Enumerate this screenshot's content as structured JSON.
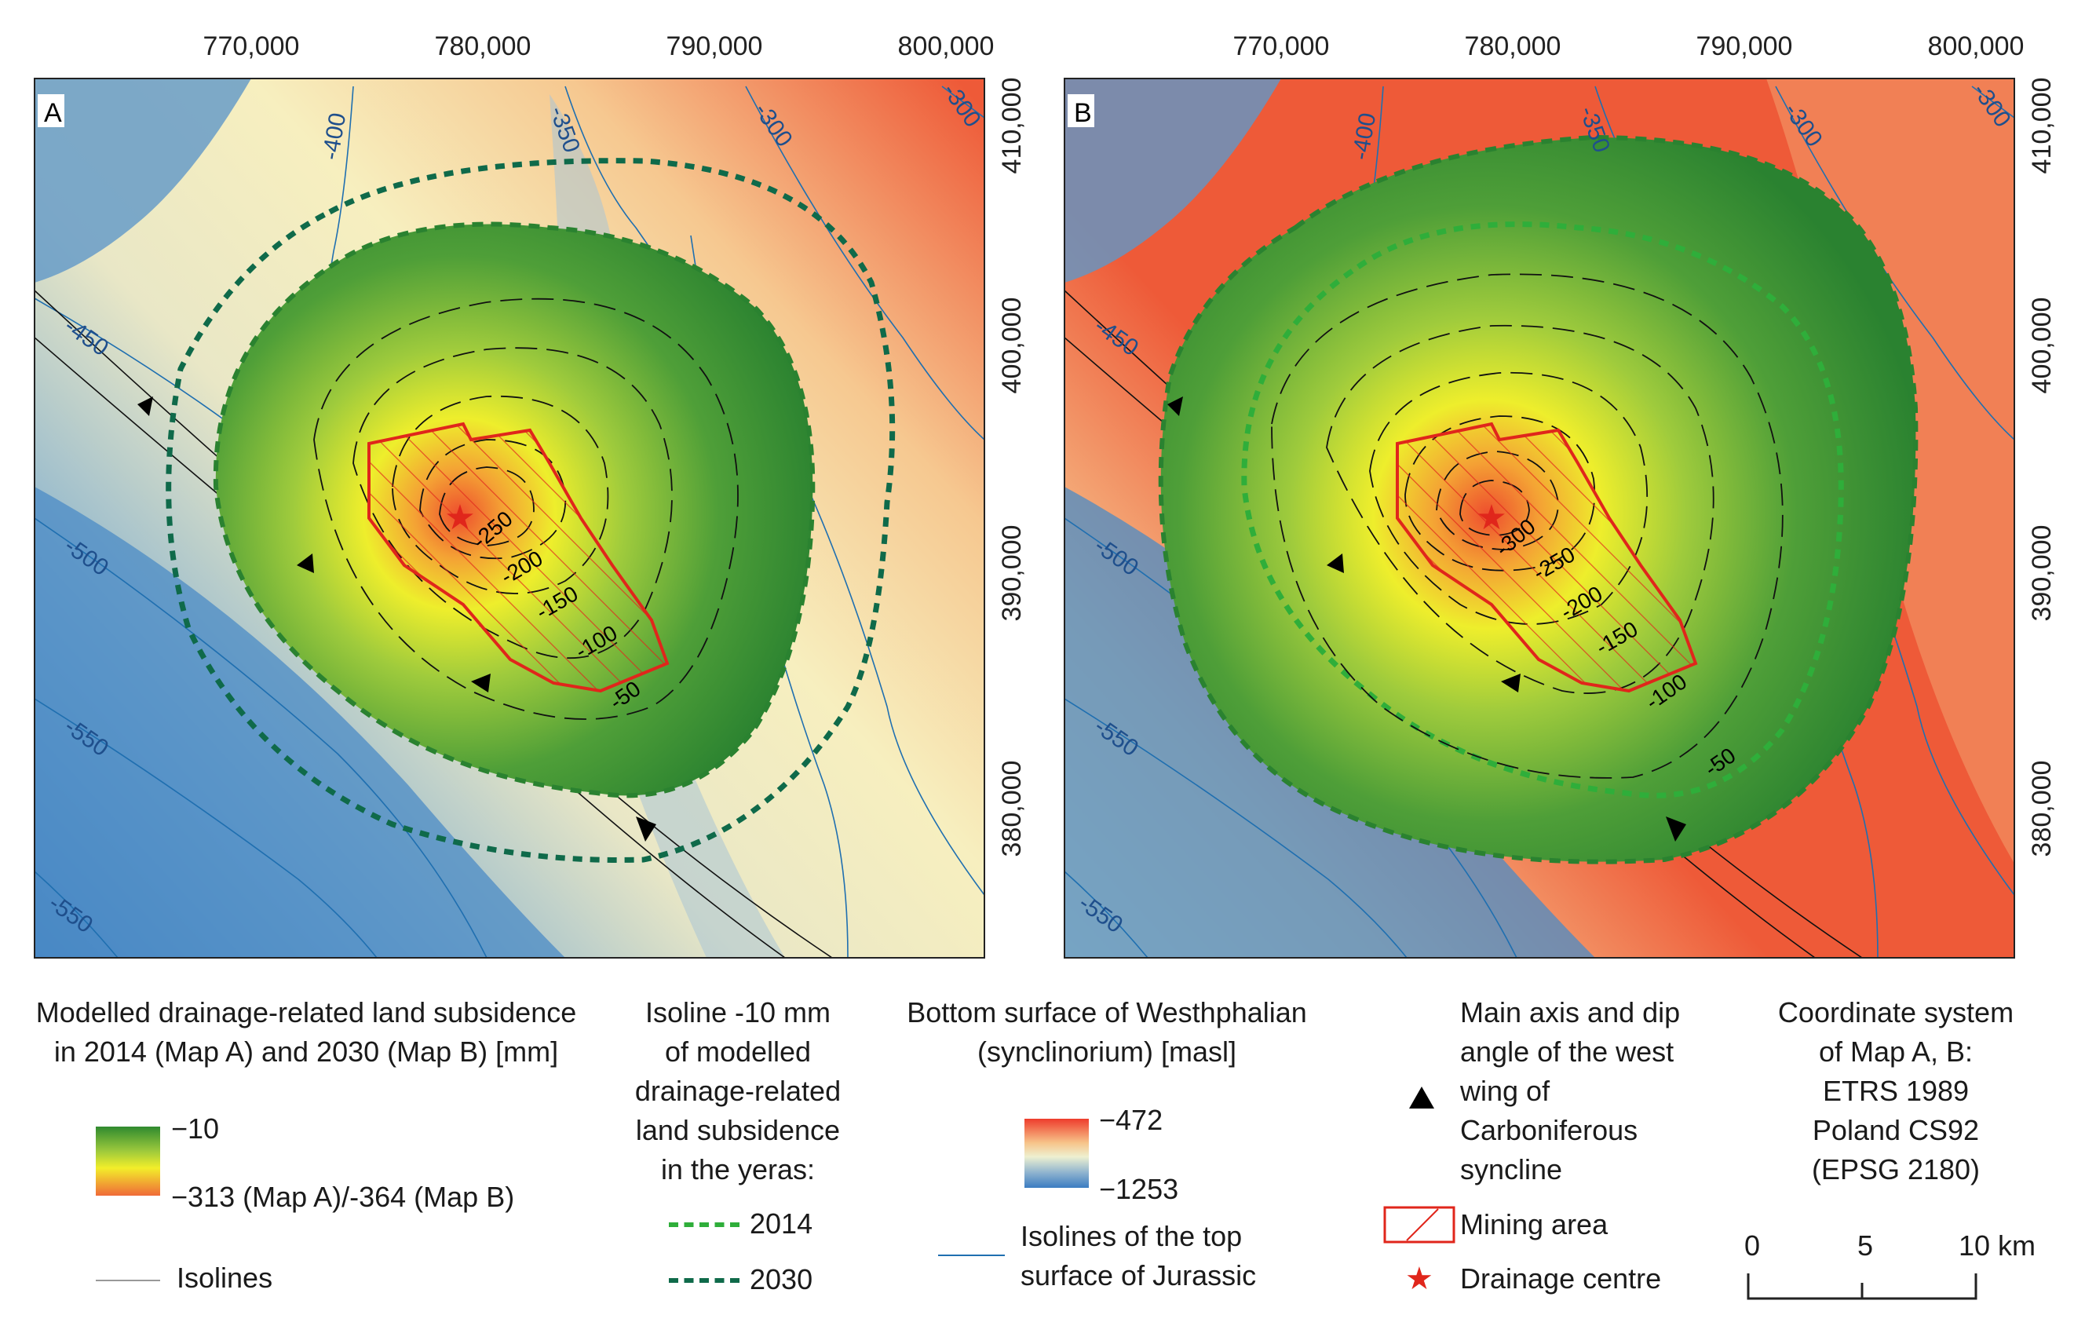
{
  "maps": {
    "a": {
      "label": "A"
    },
    "b": {
      "label": "B"
    },
    "x_ticks": [
      "770,000",
      "780,000",
      "790,000",
      "800,000"
    ],
    "y_ticks": [
      "410,000",
      "400,000",
      "390,000",
      "380,000"
    ],
    "jurassic_isolines": {
      "v400": "-400",
      "v350": "-350",
      "v300a": "-300",
      "v300b": "-300",
      "v450": "-450",
      "v500": "-500",
      "v550a": "-550",
      "v550b": "-550"
    },
    "subsidence_labels_a": [
      "-250",
      "-200",
      "-150",
      "-100",
      "-50"
    ],
    "subsidence_labels_b": [
      "-300",
      "-250",
      "-200",
      "-150",
      "-100",
      "-50"
    ]
  },
  "legend": {
    "subsidence": {
      "title_line1": "Modelled drainage-related land subsidence",
      "title_line2": "in 2014 (Map A) and 2030 (Map B) [mm]",
      "max_label": "−10",
      "min_label": "−313 (Map A)/-364 (Map B)",
      "isolines_label": "Isolines",
      "colors": {
        "high": "#2f8a2f",
        "mid": "#f2ee2a",
        "low": "#f06a38"
      }
    },
    "isoline10": {
      "lines": [
        "Isoline -10 mm",
        "of modelled",
        "drainage-related",
        "land subsidence",
        "in the yeras:"
      ],
      "year_2014": "2014",
      "year_2030": "2030",
      "color_2014": "#2fae3a",
      "color_2030": "#0f6a4a"
    },
    "westphalian": {
      "title_line1": "Bottom surface of Westhphalian",
      "title_line2": "(synclinorium) [masl]",
      "max_label": "−472",
      "min_label": "−1253",
      "jurassic_line1": "Isolines of the top",
      "jurassic_line2": "surface of Jurassic",
      "jurassic_color": "#1f6fb0"
    },
    "features": {
      "axis_lines": [
        "Main axis and dip",
        "angle of the west",
        "wing of",
        "Carboniferous",
        "syncline"
      ],
      "mining_label": "Mining area",
      "drainage_label": "Drainage centre",
      "mining_color": "#e0261b"
    },
    "coords": {
      "lines": [
        "Coordinate system",
        "of Map A, B:",
        "ETRS 1989",
        "Poland CS92",
        "(EPSG 2180)"
      ],
      "scale_0": "0",
      "scale_5": "5",
      "scale_10": "10 km"
    }
  }
}
